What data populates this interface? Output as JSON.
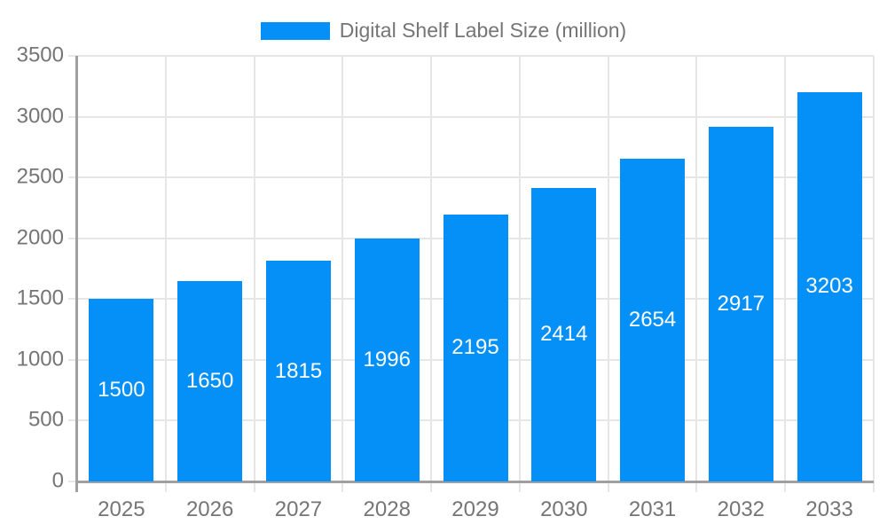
{
  "chart_data": {
    "type": "bar",
    "series_name": "Digital Shelf Label Size (million)",
    "categories": [
      "2025",
      "2026",
      "2027",
      "2028",
      "2029",
      "2030",
      "2031",
      "2032",
      "2033"
    ],
    "values": [
      1500,
      1650,
      1815,
      1996,
      2195,
      2414,
      2654,
      2917,
      3203
    ],
    "ylim": [
      0,
      3500
    ],
    "ytick_step": 500,
    "ytick_labels": [
      "0",
      "500",
      "1000",
      "1500",
      "2000",
      "2500",
      "3000",
      "3500"
    ],
    "grid": true,
    "legend_position": "top",
    "bar_labels_visible": true,
    "colors": {
      "bar": "#0590f8",
      "bar_label": "#ffffff",
      "axis_text": "#757575",
      "grid_line": "#e6e6e6",
      "axis_line": "#a0a0a0"
    }
  }
}
